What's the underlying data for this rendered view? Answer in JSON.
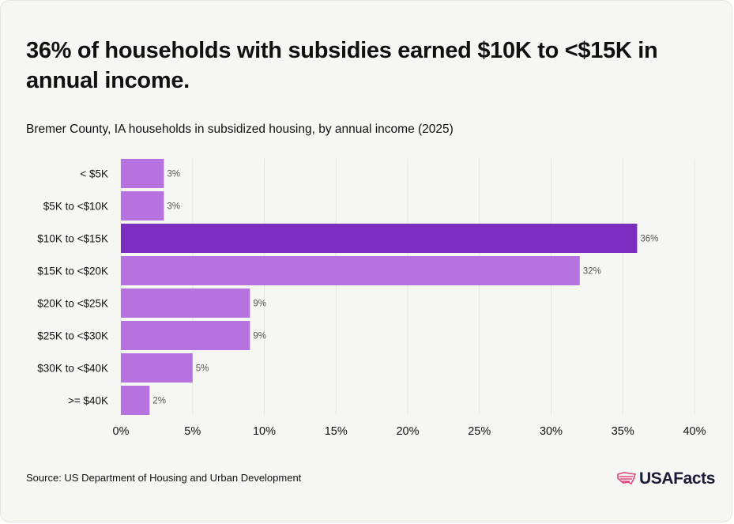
{
  "title": "36% of households with subsidies earned $10K to <$15K in annual income.",
  "subtitle": "Bremer County, IA households in subsidized housing, by annual income (2025)",
  "source": "Source: US Department of Housing and Urban Development",
  "brand": "USAFacts",
  "colors": {
    "bar": "#b673df",
    "highlight": "#7b2dc0",
    "grid": "#e4e4e1",
    "text": "#111111",
    "label": "#555555",
    "logo_mark": "#e0457a"
  },
  "chart_data": {
    "type": "bar",
    "orientation": "horizontal",
    "categories": [
      "< $5K",
      "$5K to <$10K",
      "$10K to <$15K",
      "$15K to <$20K",
      "$20K to <$25K",
      "$25K to <$30K",
      "$30K to <$40K",
      ">= $40K"
    ],
    "values": [
      3,
      3,
      36,
      32,
      9,
      9,
      5,
      2
    ],
    "value_labels": [
      "3%",
      "3%",
      "36%",
      "32%",
      "9%",
      "9%",
      "5%",
      "2%"
    ],
    "highlight_index": 2,
    "xlim": [
      0,
      40
    ],
    "xticks": [
      0,
      5,
      10,
      15,
      20,
      25,
      30,
      35,
      40
    ],
    "xtick_labels": [
      "0%",
      "5%",
      "10%",
      "15%",
      "20%",
      "25%",
      "30%",
      "35%",
      "40%"
    ],
    "grid": true,
    "title": "36% of households with subsidies earned $10K to <$15K in annual income.",
    "xlabel": "",
    "ylabel": ""
  }
}
